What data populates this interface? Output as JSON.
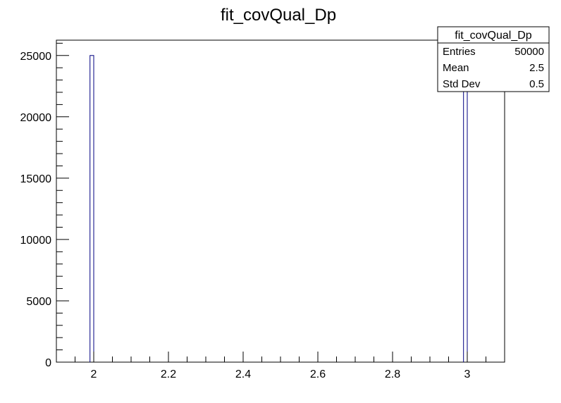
{
  "chart_data": {
    "type": "bar",
    "title": "fit_covQual_Dp",
    "xlabel": "",
    "ylabel": "",
    "xlim": [
      1.9,
      3.1
    ],
    "ylim": [
      0,
      26250
    ],
    "bin_width": 0.01,
    "bins": [
      {
        "x_low": 1.99,
        "x_high": 2.0,
        "value": 25000
      },
      {
        "x_low": 2.99,
        "x_high": 3.0,
        "value": 25000
      }
    ],
    "x_ticks": [
      "2",
      "2.2",
      "2.4",
      "2.6",
      "2.8",
      "3"
    ],
    "y_ticks": [
      "0",
      "5000",
      "10000",
      "15000",
      "20000",
      "25000"
    ],
    "grid": false,
    "line_color": "#000080",
    "stats_box": {
      "name": "fit_covQual_Dp",
      "rows": [
        {
          "label": "Entries",
          "value": "50000"
        },
        {
          "label": "Mean",
          "value": "2.5"
        },
        {
          "label": "Std Dev",
          "value": "0.5"
        }
      ],
      "placement": "top-right"
    }
  }
}
